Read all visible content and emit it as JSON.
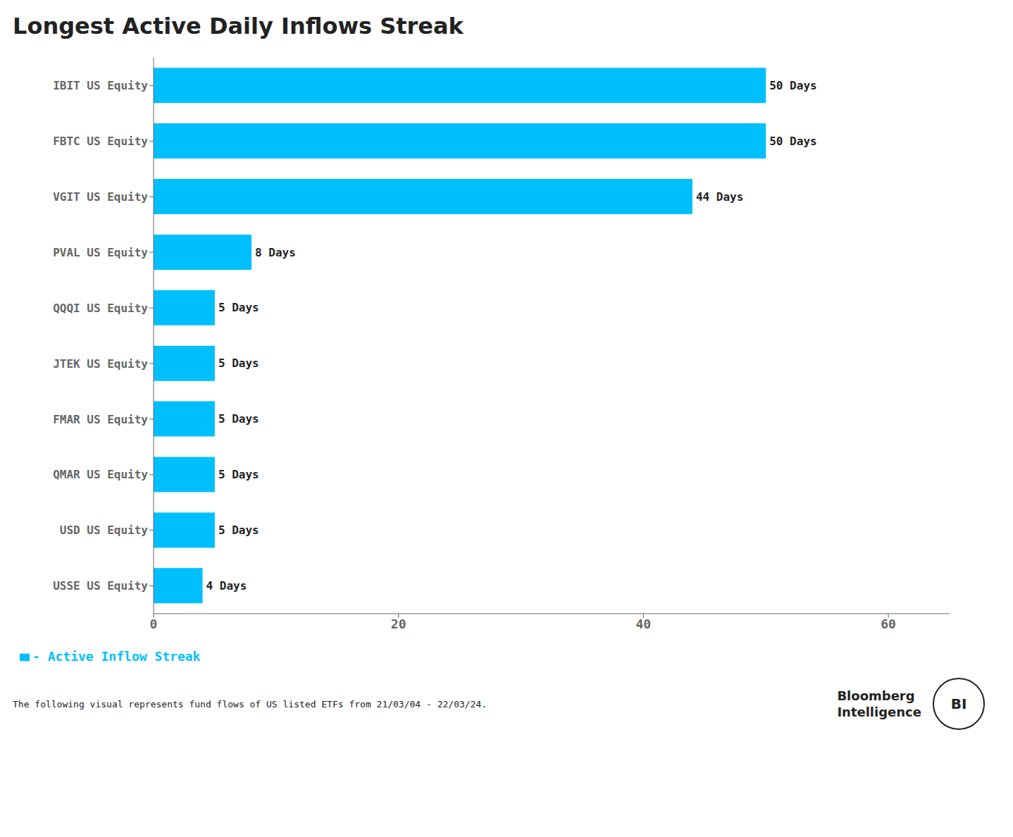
{
  "chart_data": {
    "type": "bar",
    "orientation": "horizontal",
    "title": "Longest Active Daily Inflows Streak",
    "categories": [
      "IBIT US Equity",
      "FBTC US Equity",
      "VGIT US Equity",
      "PVAL US Equity",
      "QQQI US Equity",
      "JTEK US Equity",
      "FMAR US Equity",
      "QMAR US Equity",
      "USD US Equity",
      "USSE US Equity"
    ],
    "series": [
      {
        "name": "- Active Inflow Streak",
        "color": "#00BFFF",
        "values": [
          50,
          50,
          44,
          8,
          5,
          5,
          5,
          5,
          5,
          4
        ],
        "value_labels": [
          "50 Days",
          "50 Days",
          "44 Days",
          "8 Days",
          "5 Days",
          "5 Days",
          "5 Days",
          "5 Days",
          "5 Days",
          "4 Days"
        ]
      }
    ],
    "data_labels": true,
    "xlim": [
      0,
      65
    ],
    "xticks": [
      0,
      20,
      40,
      60
    ],
    "grid": false,
    "legend": "lower left",
    "annotations": [
      "The following visual represents fund flows of US listed ETFs from 21/03/04 - 22/03/24.",
      "Bloomberg",
      "Intelligence",
      "BI"
    ]
  }
}
